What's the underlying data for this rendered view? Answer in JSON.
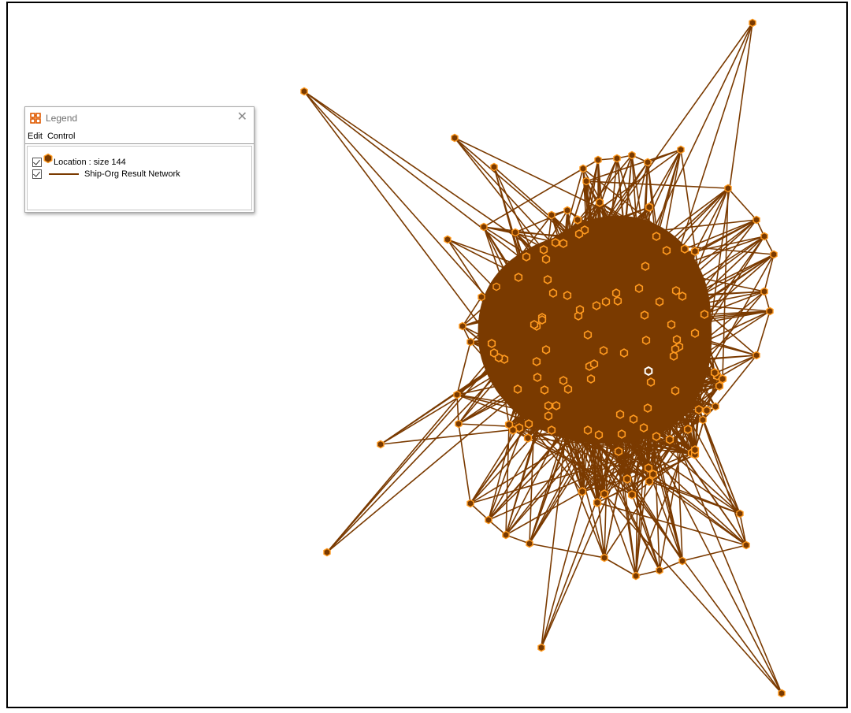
{
  "legend": {
    "title": "Legend",
    "close_glyph": "✕",
    "menu": [
      "Edit",
      "Control"
    ],
    "rows": [
      {
        "label": "Location : size 144",
        "checked": true,
        "swatch": "node"
      },
      {
        "label": "Ship-Org Result Network",
        "checked": true,
        "swatch": "line"
      }
    ]
  },
  "icons": {
    "app": "network-app-icon",
    "close": "close-icon",
    "checkbox": "checkbox-checked-icon"
  },
  "colors": {
    "edge": "#7a3a00",
    "node_fill": "#7a3a00",
    "node_stroke": "#ff9a1f",
    "selected_stroke": "#ffffff",
    "canvas_border": "#000000"
  },
  "network": {
    "node_count": 144
  }
}
